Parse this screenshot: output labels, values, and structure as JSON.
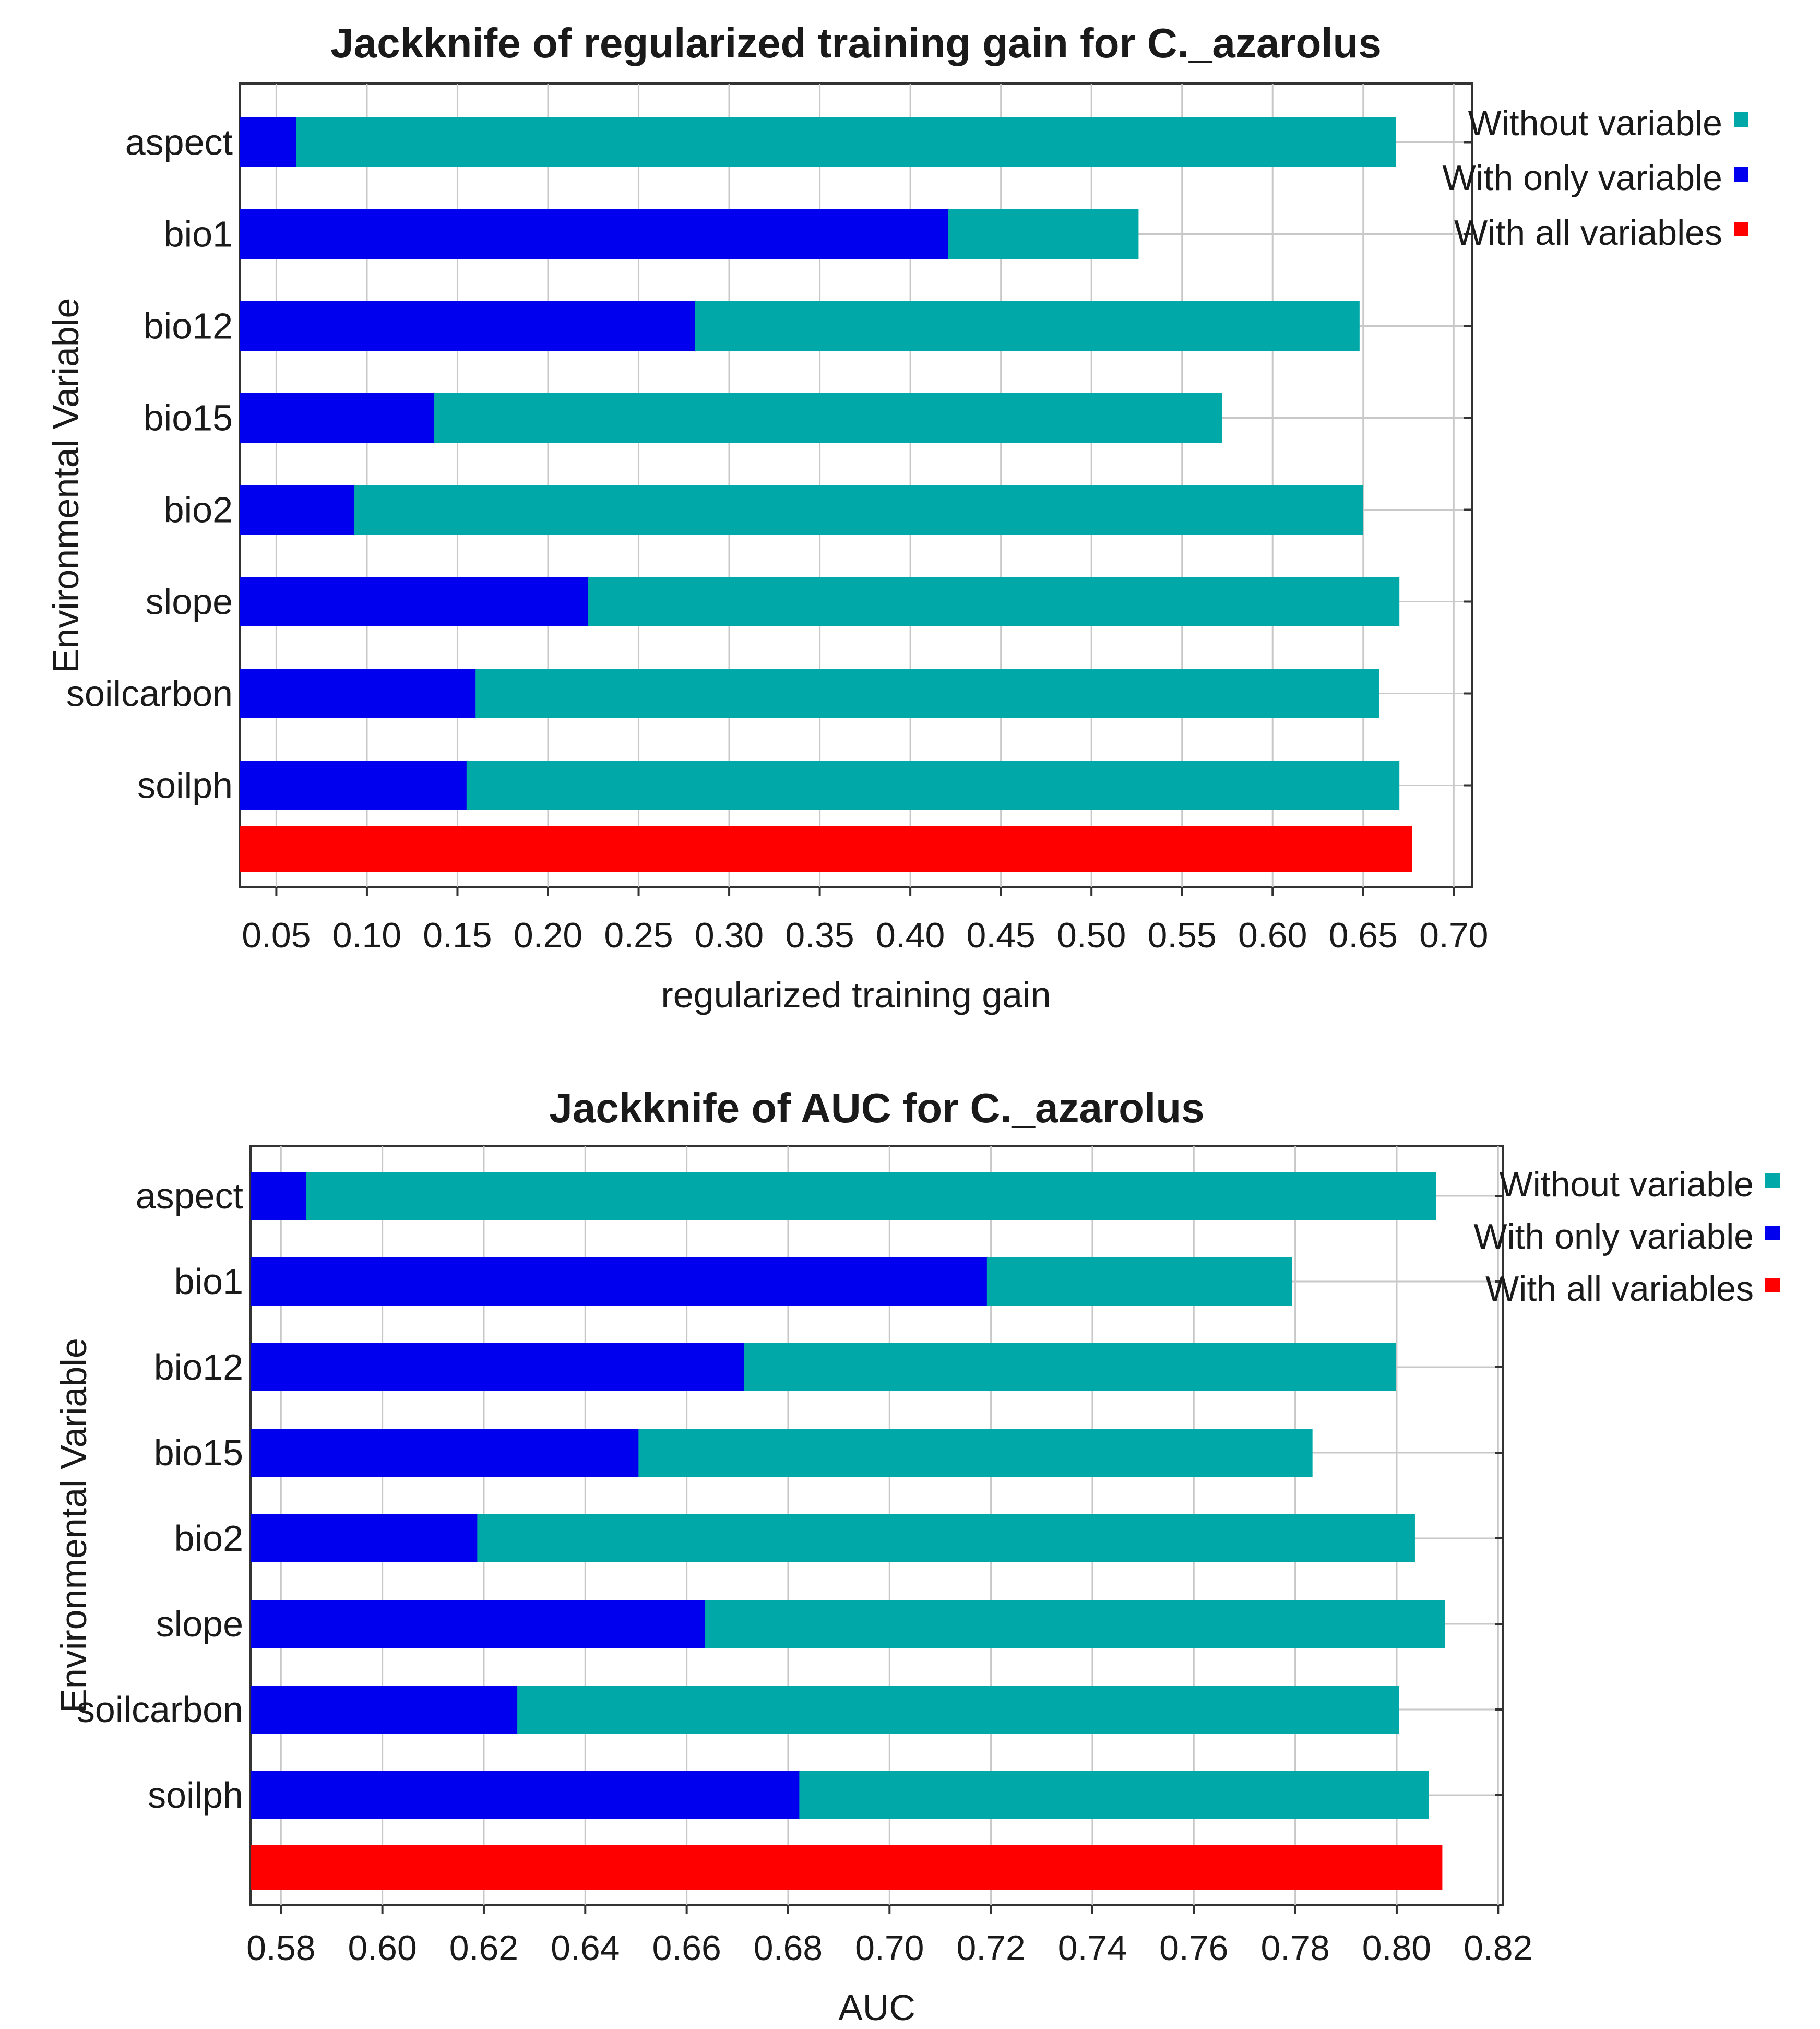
{
  "chart_data": [
    {
      "type": "bar",
      "orientation": "horizontal",
      "title": "Jackknife of regularized training gain for C._azarolus",
      "xlabel": "regularized training gain",
      "ylabel": "Environmental Variable",
      "categories": [
        "aspect",
        "bio1",
        "bio12",
        "bio15",
        "bio2",
        "slope",
        "soilcarbon",
        "soilph"
      ],
      "xlim": [
        0.03,
        0.71
      ],
      "xticks": [
        "0.05",
        "0.10",
        "0.15",
        "0.20",
        "0.25",
        "0.30",
        "0.35",
        "0.40",
        "0.45",
        "0.50",
        "0.55",
        "0.60",
        "0.65",
        "0.70"
      ],
      "grid": true,
      "legend_position": "right",
      "series": [
        {
          "name": "Without variable",
          "color": "#00a8a8",
          "values": [
            0.668,
            0.526,
            0.648,
            0.572,
            0.65,
            0.67,
            0.659,
            0.67
          ]
        },
        {
          "name": "With only variable",
          "color": "#0000ee",
          "values": [
            0.061,
            0.421,
            0.281,
            0.137,
            0.093,
            0.222,
            0.16,
            0.155
          ]
        },
        {
          "name": "With all variables",
          "color": "#ff0000",
          "value": 0.677
        }
      ]
    },
    {
      "type": "bar",
      "orientation": "horizontal",
      "title": "Jackknife of AUC for C._azarolus",
      "xlabel": "AUC",
      "ylabel": "Environmental Variable",
      "categories": [
        "aspect",
        "bio1",
        "bio12",
        "bio15",
        "bio2",
        "slope",
        "soilcarbon",
        "soilph"
      ],
      "xlim": [
        0.574,
        0.821
      ],
      "xticks": [
        "0.58",
        "0.60",
        "0.62",
        "0.64",
        "0.66",
        "0.68",
        "0.70",
        "0.72",
        "0.74",
        "0.76",
        "0.78",
        "0.80",
        "0.82"
      ],
      "grid": true,
      "legend_position": "right",
      "series": [
        {
          "name": "Without variable",
          "color": "#00a8a8",
          "values": [
            0.8078,
            0.7794,
            0.7998,
            0.7834,
            0.8036,
            0.8095,
            0.8005,
            0.8063
          ]
        },
        {
          "name": "With only variable",
          "color": "#0000ee",
          "values": [
            0.585,
            0.7192,
            0.6713,
            0.6505,
            0.6187,
            0.6636,
            0.6266,
            0.6822
          ]
        },
        {
          "name": "With all variables",
          "color": "#ff0000",
          "value": 0.809
        }
      ]
    }
  ]
}
